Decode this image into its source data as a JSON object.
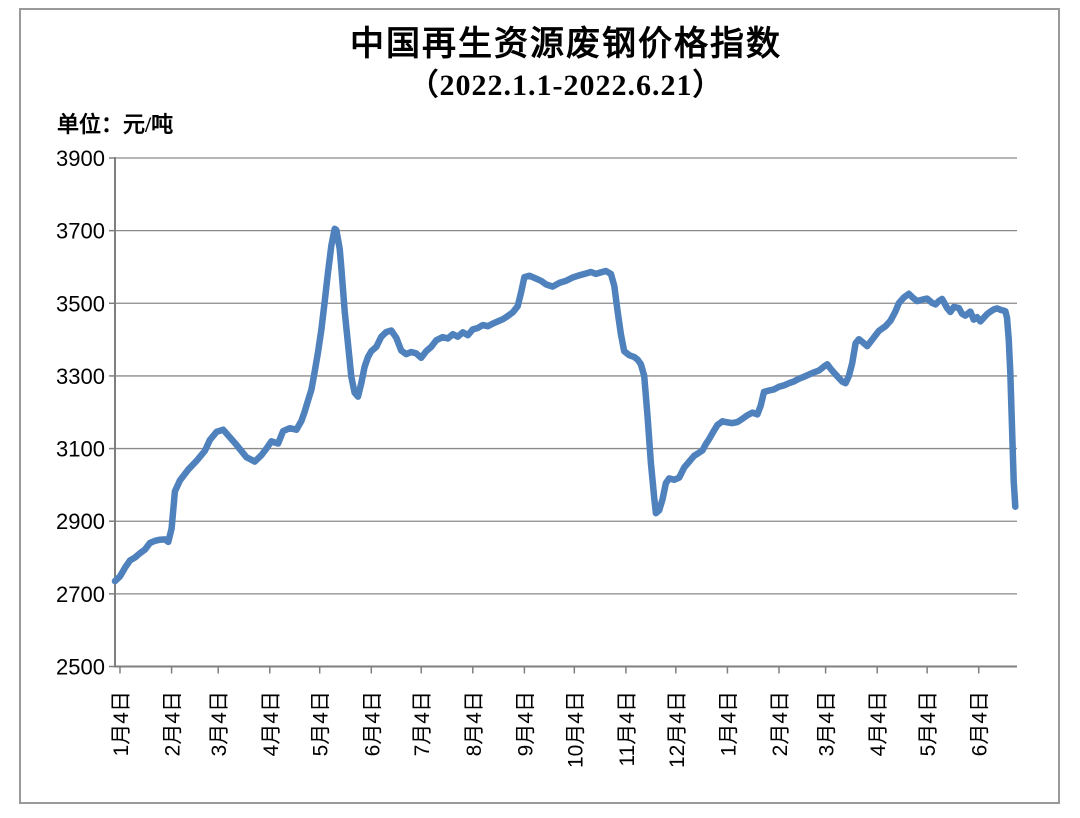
{
  "title": {
    "line1": "中国再生资源废钢价格指数",
    "line2": "（2022.1.1-2022.6.21）"
  },
  "unit_label": "单位：元/吨",
  "chart_data": {
    "type": "line",
    "series_name": "中国再生资源废钢价格指数",
    "title": "中国再生资源废钢价格指数（2022.1.1-2022.6.21）",
    "ylabel": "单位：元/吨",
    "ylim": [
      2500,
      3900
    ],
    "y_ticks": [
      2500,
      2700,
      2900,
      3100,
      3300,
      3500,
      3700,
      3900
    ],
    "x_domain_days": [
      0,
      542
    ],
    "x_ticks": [
      {
        "label": "1月4日",
        "day": 3
      },
      {
        "label": "2月4日",
        "day": 34
      },
      {
        "label": "3月4日",
        "day": 62
      },
      {
        "label": "4月4日",
        "day": 93
      },
      {
        "label": "5月4日",
        "day": 123
      },
      {
        "label": "6月4日",
        "day": 154
      },
      {
        "label": "7月4日",
        "day": 184
      },
      {
        "label": "8月4日",
        "day": 215
      },
      {
        "label": "9月4日",
        "day": 246
      },
      {
        "label": "10月4日",
        "day": 276
      },
      {
        "label": "11月4日",
        "day": 307
      },
      {
        "label": "12月4日",
        "day": 337
      },
      {
        "label": "1月4日",
        "day": 368
      },
      {
        "label": "2月4日",
        "day": 399
      },
      {
        "label": "3月4日",
        "day": 427
      },
      {
        "label": "4月4日",
        "day": 458
      },
      {
        "label": "5月4日",
        "day": 488
      },
      {
        "label": "6月4日",
        "day": 519
      }
    ],
    "grid_on": true,
    "legend": "none",
    "line_color": "#4f81bd",
    "grid_color": "#8a8a8a",
    "axis_color": "#7f7f7f",
    "points": [
      [
        0,
        2735
      ],
      [
        3,
        2748
      ],
      [
        6,
        2772
      ],
      [
        9,
        2792
      ],
      [
        12,
        2800
      ],
      [
        15,
        2812
      ],
      [
        18,
        2822
      ],
      [
        21,
        2840
      ],
      [
        24,
        2846
      ],
      [
        27,
        2849
      ],
      [
        30,
        2850
      ],
      [
        32,
        2843
      ],
      [
        34,
        2880
      ],
      [
        36,
        2982
      ],
      [
        39,
        3012
      ],
      [
        44,
        3042
      ],
      [
        49,
        3066
      ],
      [
        54,
        3094
      ],
      [
        57,
        3124
      ],
      [
        61,
        3146
      ],
      [
        65,
        3152
      ],
      [
        69,
        3131
      ],
      [
        73,
        3110
      ],
      [
        79,
        3076
      ],
      [
        84,
        3064
      ],
      [
        88,
        3082
      ],
      [
        91,
        3100
      ],
      [
        94,
        3120
      ],
      [
        98,
        3114
      ],
      [
        101,
        3148
      ],
      [
        105,
        3156
      ],
      [
        109,
        3152
      ],
      [
        112,
        3176
      ],
      [
        114,
        3202
      ],
      [
        116,
        3232
      ],
      [
        118,
        3262
      ],
      [
        120,
        3312
      ],
      [
        122,
        3365
      ],
      [
        124,
        3428
      ],
      [
        126,
        3505
      ],
      [
        128,
        3585
      ],
      [
        130,
        3658
      ],
      [
        132,
        3705
      ],
      [
        133,
        3702
      ],
      [
        135,
        3650
      ],
      [
        136,
        3598
      ],
      [
        138,
        3478
      ],
      [
        140,
        3388
      ],
      [
        142,
        3298
      ],
      [
        144,
        3254
      ],
      [
        146,
        3243
      ],
      [
        148,
        3280
      ],
      [
        150,
        3325
      ],
      [
        152,
        3352
      ],
      [
        154,
        3368
      ],
      [
        157,
        3380
      ],
      [
        160,
        3408
      ],
      [
        163,
        3421
      ],
      [
        166,
        3425
      ],
      [
        169,
        3405
      ],
      [
        172,
        3370
      ],
      [
        175,
        3360
      ],
      [
        178,
        3366
      ],
      [
        181,
        3362
      ],
      [
        184,
        3350
      ],
      [
        187,
        3368
      ],
      [
        190,
        3380
      ],
      [
        193,
        3398
      ],
      [
        197,
        3407
      ],
      [
        200,
        3403
      ],
      [
        203,
        3415
      ],
      [
        206,
        3408
      ],
      [
        209,
        3420
      ],
      [
        212,
        3412
      ],
      [
        215,
        3428
      ],
      [
        218,
        3432
      ],
      [
        221,
        3440
      ],
      [
        224,
        3437
      ],
      [
        227,
        3444
      ],
      [
        230,
        3450
      ],
      [
        233,
        3456
      ],
      [
        236,
        3465
      ],
      [
        239,
        3475
      ],
      [
        242,
        3492
      ],
      [
        244,
        3530
      ],
      [
        246,
        3572
      ],
      [
        249,
        3576
      ],
      [
        252,
        3570
      ],
      [
        256,
        3562
      ],
      [
        259,
        3552
      ],
      [
        263,
        3546
      ],
      [
        267,
        3556
      ],
      [
        271,
        3562
      ],
      [
        275,
        3571
      ],
      [
        279,
        3577
      ],
      [
        283,
        3582
      ],
      [
        286,
        3586
      ],
      [
        289,
        3581
      ],
      [
        292,
        3585
      ],
      [
        295,
        3589
      ],
      [
        298,
        3581
      ],
      [
        300,
        3548
      ],
      [
        302,
        3478
      ],
      [
        304,
        3415
      ],
      [
        306,
        3368
      ],
      [
        309,
        3357
      ],
      [
        312,
        3352
      ],
      [
        314,
        3345
      ],
      [
        316,
        3332
      ],
      [
        318,
        3300
      ],
      [
        320,
        3190
      ],
      [
        322,
        3060
      ],
      [
        324,
        2965
      ],
      [
        325,
        2922
      ],
      [
        327,
        2930
      ],
      [
        329,
        2960
      ],
      [
        331,
        3005
      ],
      [
        333,
        3018
      ],
      [
        336,
        3014
      ],
      [
        339,
        3020
      ],
      [
        342,
        3048
      ],
      [
        345,
        3064
      ],
      [
        348,
        3080
      ],
      [
        350,
        3086
      ],
      [
        353,
        3095
      ],
      [
        355,
        3112
      ],
      [
        357,
        3126
      ],
      [
        360,
        3150
      ],
      [
        362,
        3165
      ],
      [
        365,
        3175
      ],
      [
        368,
        3172
      ],
      [
        371,
        3170
      ],
      [
        374,
        3173
      ],
      [
        377,
        3182
      ],
      [
        380,
        3192
      ],
      [
        383,
        3199
      ],
      [
        386,
        3194
      ],
      [
        388,
        3218
      ],
      [
        390,
        3256
      ],
      [
        393,
        3260
      ],
      [
        396,
        3263
      ],
      [
        399,
        3270
      ],
      [
        402,
        3274
      ],
      [
        405,
        3280
      ],
      [
        408,
        3285
      ],
      [
        411,
        3292
      ],
      [
        414,
        3298
      ],
      [
        417,
        3304
      ],
      [
        420,
        3310
      ],
      [
        423,
        3315
      ],
      [
        426,
        3326
      ],
      [
        428,
        3332
      ],
      [
        430,
        3320
      ],
      [
        433,
        3304
      ],
      [
        435,
        3294
      ],
      [
        437,
        3284
      ],
      [
        439,
        3280
      ],
      [
        441,
        3300
      ],
      [
        443,
        3335
      ],
      [
        445,
        3390
      ],
      [
        447,
        3401
      ],
      [
        449,
        3394
      ],
      [
        452,
        3382
      ],
      [
        455,
        3400
      ],
      [
        459,
        3424
      ],
      [
        463,
        3437
      ],
      [
        466,
        3452
      ],
      [
        469,
        3478
      ],
      [
        471,
        3500
      ],
      [
        474,
        3516
      ],
      [
        477,
        3526
      ],
      [
        479,
        3517
      ],
      [
        482,
        3506
      ],
      [
        485,
        3510
      ],
      [
        488,
        3513
      ],
      [
        491,
        3501
      ],
      [
        493,
        3497
      ],
      [
        495,
        3506
      ],
      [
        497,
        3512
      ],
      [
        500,
        3487
      ],
      [
        502,
        3476
      ],
      [
        504,
        3490
      ],
      [
        507,
        3487
      ],
      [
        509,
        3471
      ],
      [
        511,
        3466
      ],
      [
        514,
        3477
      ],
      [
        516,
        3455
      ],
      [
        518,
        3462
      ],
      [
        520,
        3450
      ],
      [
        522,
        3460
      ],
      [
        524,
        3470
      ],
      [
        526,
        3477
      ],
      [
        528,
        3483
      ],
      [
        530,
        3486
      ],
      [
        532,
        3482
      ],
      [
        534,
        3480
      ],
      [
        535,
        3478
      ],
      [
        536,
        3460
      ],
      [
        537,
        3402
      ],
      [
        538,
        3310
      ],
      [
        539,
        3160
      ],
      [
        540,
        3010
      ],
      [
        541,
        2940
      ]
    ]
  }
}
